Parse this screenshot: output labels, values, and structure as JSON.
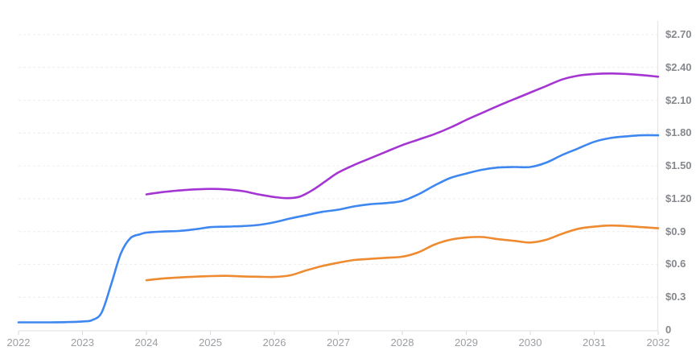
{
  "background_color": "#ffffff",
  "chart_data": {
    "type": "line",
    "title": "",
    "xlabel": "",
    "ylabel": "",
    "legend": "none",
    "grid": "horizontal-dashed",
    "x_axis": {
      "range": [
        2022,
        2032
      ],
      "ticks": [
        2022,
        2023,
        2024,
        2025,
        2026,
        2027,
        2028,
        2029,
        2030,
        2031,
        2032
      ],
      "tick_labels": [
        "2022",
        "2023",
        "2024",
        "2025",
        "2026",
        "2027",
        "2028",
        "2029",
        "2030",
        "2031",
        "2032"
      ]
    },
    "y_axis": {
      "side": "right",
      "range": [
        0,
        2.7
      ],
      "tick_values": [
        0,
        0.3,
        0.6,
        0.9,
        1.2,
        1.5,
        1.8,
        2.1,
        2.4,
        2.7
      ],
      "tick_labels": [
        "0",
        "$0.3",
        "$0.6",
        "$0.9",
        "$1.20",
        "$1.50",
        "$1.80",
        "$2.10",
        "$2.40",
        "$2.70"
      ]
    },
    "series": [
      {
        "name": "blue",
        "color": "#3e87f0",
        "points": [
          [
            2022,
            0.07
          ],
          [
            2022.25,
            0.07
          ],
          [
            2022.5,
            0.07
          ],
          [
            2022.75,
            0.072
          ],
          [
            2023,
            0.078
          ],
          [
            2023.15,
            0.09
          ],
          [
            2023.3,
            0.16
          ],
          [
            2023.45,
            0.42
          ],
          [
            2023.6,
            0.7
          ],
          [
            2023.75,
            0.84
          ],
          [
            2023.9,
            0.875
          ],
          [
            2024,
            0.89
          ],
          [
            2024.25,
            0.9
          ],
          [
            2024.5,
            0.905
          ],
          [
            2024.75,
            0.92
          ],
          [
            2025,
            0.94
          ],
          [
            2025.25,
            0.945
          ],
          [
            2025.5,
            0.95
          ],
          [
            2025.75,
            0.96
          ],
          [
            2026,
            0.985
          ],
          [
            2026.25,
            1.02
          ],
          [
            2026.5,
            1.05
          ],
          [
            2026.75,
            1.08
          ],
          [
            2027,
            1.1
          ],
          [
            2027.25,
            1.13
          ],
          [
            2027.5,
            1.15
          ],
          [
            2027.75,
            1.16
          ],
          [
            2028,
            1.18
          ],
          [
            2028.25,
            1.24
          ],
          [
            2028.5,
            1.32
          ],
          [
            2028.75,
            1.39
          ],
          [
            2029,
            1.43
          ],
          [
            2029.25,
            1.465
          ],
          [
            2029.5,
            1.485
          ],
          [
            2029.75,
            1.49
          ],
          [
            2030,
            1.49
          ],
          [
            2030.25,
            1.53
          ],
          [
            2030.5,
            1.6
          ],
          [
            2030.75,
            1.66
          ],
          [
            2031,
            1.72
          ],
          [
            2031.25,
            1.755
          ],
          [
            2031.5,
            1.77
          ],
          [
            2031.75,
            1.78
          ],
          [
            2032,
            1.78
          ]
        ]
      },
      {
        "name": "purple",
        "color": "#a535d2",
        "points": [
          [
            2024,
            1.24
          ],
          [
            2024.25,
            1.26
          ],
          [
            2024.5,
            1.275
          ],
          [
            2024.75,
            1.285
          ],
          [
            2025,
            1.29
          ],
          [
            2025.25,
            1.285
          ],
          [
            2025.5,
            1.27
          ],
          [
            2025.75,
            1.24
          ],
          [
            2026,
            1.215
          ],
          [
            2026.2,
            1.205
          ],
          [
            2026.4,
            1.22
          ],
          [
            2026.6,
            1.28
          ],
          [
            2026.8,
            1.36
          ],
          [
            2027,
            1.44
          ],
          [
            2027.25,
            1.51
          ],
          [
            2027.5,
            1.57
          ],
          [
            2027.75,
            1.63
          ],
          [
            2028,
            1.69
          ],
          [
            2028.25,
            1.74
          ],
          [
            2028.5,
            1.79
          ],
          [
            2028.75,
            1.85
          ],
          [
            2029,
            1.92
          ],
          [
            2029.25,
            1.985
          ],
          [
            2029.5,
            2.05
          ],
          [
            2029.75,
            2.11
          ],
          [
            2030,
            2.17
          ],
          [
            2030.25,
            2.23
          ],
          [
            2030.5,
            2.29
          ],
          [
            2030.75,
            2.325
          ],
          [
            2031,
            2.34
          ],
          [
            2031.25,
            2.345
          ],
          [
            2031.5,
            2.34
          ],
          [
            2031.75,
            2.33
          ],
          [
            2032,
            2.315
          ]
        ]
      },
      {
        "name": "orange",
        "color": "#ee8b30",
        "points": [
          [
            2024,
            0.455
          ],
          [
            2024.25,
            0.47
          ],
          [
            2024.5,
            0.48
          ],
          [
            2024.75,
            0.487
          ],
          [
            2025,
            0.493
          ],
          [
            2025.25,
            0.495
          ],
          [
            2025.5,
            0.49
          ],
          [
            2025.75,
            0.487
          ],
          [
            2026,
            0.485
          ],
          [
            2026.25,
            0.5
          ],
          [
            2026.5,
            0.545
          ],
          [
            2026.75,
            0.585
          ],
          [
            2027,
            0.615
          ],
          [
            2027.25,
            0.64
          ],
          [
            2027.5,
            0.65
          ],
          [
            2027.75,
            0.66
          ],
          [
            2028,
            0.67
          ],
          [
            2028.25,
            0.71
          ],
          [
            2028.5,
            0.78
          ],
          [
            2028.75,
            0.825
          ],
          [
            2029,
            0.845
          ],
          [
            2029.25,
            0.85
          ],
          [
            2029.5,
            0.83
          ],
          [
            2029.75,
            0.815
          ],
          [
            2030,
            0.8
          ],
          [
            2030.25,
            0.825
          ],
          [
            2030.5,
            0.88
          ],
          [
            2030.75,
            0.925
          ],
          [
            2031,
            0.945
          ],
          [
            2031.25,
            0.955
          ],
          [
            2031.5,
            0.95
          ],
          [
            2031.75,
            0.94
          ],
          [
            2032,
            0.93
          ]
        ]
      }
    ],
    "style": {
      "grid_color": "#ececec",
      "axis_line_color": "#e4e6e8",
      "tick_mark_color": "#d8dadd",
      "y_label_color": "#85888d",
      "x_label_color": "#9b9ea3"
    }
  }
}
